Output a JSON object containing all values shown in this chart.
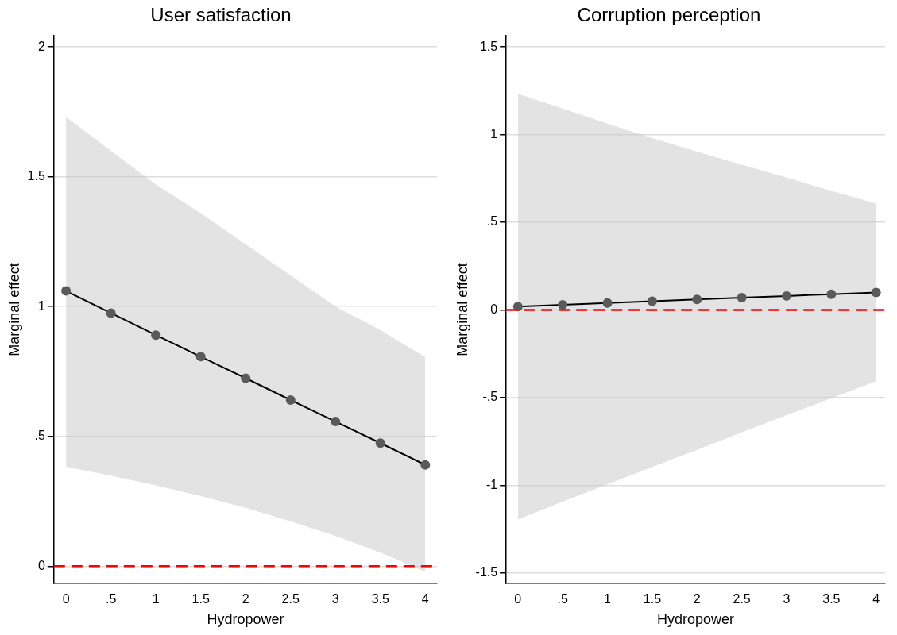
{
  "chart_data": [
    {
      "type": "line",
      "title": "User satisfaction",
      "xlabel": "Hydropower",
      "ylabel": "Marginal effect",
      "x": [
        0,
        0.5,
        1,
        1.5,
        2,
        2.5,
        3,
        3.5,
        4
      ],
      "series": [
        {
          "color": "#000000",
          "values": [
            1.06,
            0.975,
            0.89,
            0.807,
            0.724,
            0.64,
            0.557,
            0.474,
            0.39
          ],
          "lower": [
            0.383,
            0.349,
            0.311,
            0.27,
            0.225,
            0.173,
            0.116,
            0.053,
            -0.022
          ],
          "upper": [
            1.73,
            1.6,
            1.47,
            1.36,
            1.24,
            1.12,
            1.0,
            0.91,
            0.805
          ]
        }
      ],
      "xlim": [
        -0.135,
        4.13
      ],
      "xticks": [
        0,
        {
          "value": 0.5,
          "label": ".5"
        },
        1,
        1.5,
        2,
        2.5,
        3,
        3.5,
        4
      ],
      "ylim": [
        -0.067,
        2.044
      ],
      "yticks": [
        0,
        {
          "value": 0.5,
          "label": ".5"
        },
        1,
        1.5,
        2
      ],
      "ref_lines": [
        {
          "axis": "y",
          "value": 0,
          "color": "#ff0000",
          "line_style": "dashed"
        }
      ],
      "grid": "y",
      "legend": false,
      "marker": "circle",
      "line_style": "solid"
    },
    {
      "type": "line",
      "title": "Corruption perception",
      "xlabel": "Hydropower",
      "ylabel": "Marginal effect",
      "x": [
        0,
        0.5,
        1,
        1.5,
        2,
        2.5,
        3,
        3.5,
        4
      ],
      "series": [
        {
          "color": "#000000",
          "values": [
            0.02,
            0.03,
            0.04,
            0.05,
            0.06,
            0.07,
            0.08,
            0.09,
            0.1
          ],
          "lower": [
            -1.195,
            -1.093,
            -0.994,
            -0.895,
            -0.797,
            -0.698,
            -0.6,
            -0.503,
            -0.406
          ],
          "upper": [
            1.232,
            1.149,
            1.063,
            0.98,
            0.903,
            0.828,
            0.755,
            0.679,
            0.607
          ]
        }
      ],
      "xlim": [
        -0.13,
        4.1
      ],
      "xticks": [
        0,
        {
          "value": 0.5,
          "label": ".5"
        },
        1,
        1.5,
        2,
        2.5,
        3,
        3.5,
        4
      ],
      "ylim": [
        -1.56,
        1.565
      ],
      "yticks": [
        {
          "value": -1.5,
          "label": "-1.5"
        },
        {
          "value": -1,
          "label": "-1"
        },
        {
          "value": -0.5,
          "label": "-.5"
        },
        0,
        {
          "value": 0.5,
          "label": ".5"
        },
        1,
        1.5
      ],
      "ref_lines": [
        {
          "axis": "y",
          "value": 0,
          "color": "#ff0000",
          "line_style": "dashed"
        }
      ],
      "grid": "y",
      "legend": false,
      "marker": "circle",
      "line_style": "solid"
    }
  ]
}
